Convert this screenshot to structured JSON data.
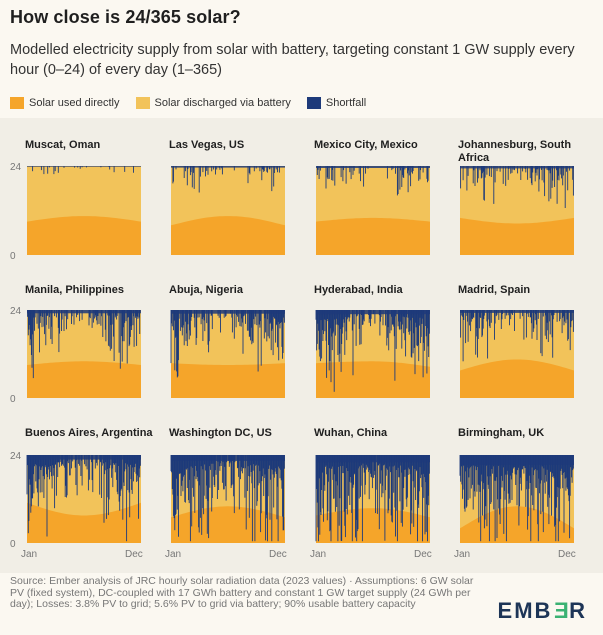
{
  "title": "How close is 24/365 solar?",
  "subtitle": "Modelled electricity supply from solar with battery, targeting constant 1 GW supply every hour (0–24) of every day (1–365)",
  "legend": [
    {
      "label": "Solar used directly",
      "color": "#f5a52a"
    },
    {
      "label": "Solar discharged via battery",
      "color": "#f2c35a"
    },
    {
      "label": "Shortfall",
      "color": "#1d3a7a"
    }
  ],
  "footer": "Source: Ember analysis of JRC hourly solar radiation data (2023 values) · Assumptions: 6 GW solar PV (fixed system), DC-coupled with 17 GWh battery and constant 1 GW target supply (24 GWh per day); Losses: 3.8% PV to grid; 5.6% PV to grid via battery; 90% usable battery capacity",
  "logo": {
    "pre": "EMB",
    "flip": "E",
    "post": "R"
  },
  "axis": {
    "y_top": "24",
    "y_bottom": "0",
    "x_left": "Jan",
    "x_right": "Dec"
  },
  "chart_data": {
    "type": "area",
    "x_range": [
      "Jan",
      "Dec"
    ],
    "ylim": [
      0,
      24
    ],
    "y_ticks": [
      "0",
      "24"
    ],
    "x_ticks": [
      "Jan",
      "Dec"
    ],
    "series_names": [
      "Solar used directly",
      "Solar discharged via battery",
      "Shortfall"
    ],
    "panels": [
      {
        "name": "Muscat, Oman",
        "direct_hours": [
          9,
          10.5,
          9
        ],
        "shortfall": 0.05
      },
      {
        "name": "Las Vegas, US",
        "direct_hours": [
          8,
          10.5,
          8
        ],
        "shortfall": 0.12
      },
      {
        "name": "Mexico City, Mexico",
        "direct_hours": [
          9,
          10,
          9
        ],
        "shortfall": 0.15
      },
      {
        "name": "Johannesburg, South Africa",
        "direct_hours": [
          10,
          8.5,
          10
        ],
        "shortfall": 0.18
      },
      {
        "name": "Manila, Philippines",
        "direct_hours": [
          9,
          10,
          9
        ],
        "shortfall": 0.25
      },
      {
        "name": "Abuja, Nigeria",
        "direct_hours": [
          9.5,
          9,
          9.5
        ],
        "shortfall": 0.28
      },
      {
        "name": "Hyderabad, India",
        "direct_hours": [
          9.5,
          10,
          8.5
        ],
        "shortfall": 0.32
      },
      {
        "name": "Madrid, Spain",
        "direct_hours": [
          7.5,
          10.5,
          7.5
        ],
        "shortfall": 0.22
      },
      {
        "name": "Buenos Aires, Argentina",
        "direct_hours": [
          11,
          7.5,
          11
        ],
        "shortfall": 0.35
      },
      {
        "name": "Washington DC, US",
        "direct_hours": [
          7,
          10,
          7
        ],
        "shortfall": 0.45
      },
      {
        "name": "Wuhan, China",
        "direct_hours": [
          7.5,
          9.5,
          7
        ],
        "shortfall": 0.55
      },
      {
        "name": "Birmingham, UK",
        "direct_hours": [
          4,
          10,
          4
        ],
        "shortfall": 0.75
      }
    ]
  }
}
